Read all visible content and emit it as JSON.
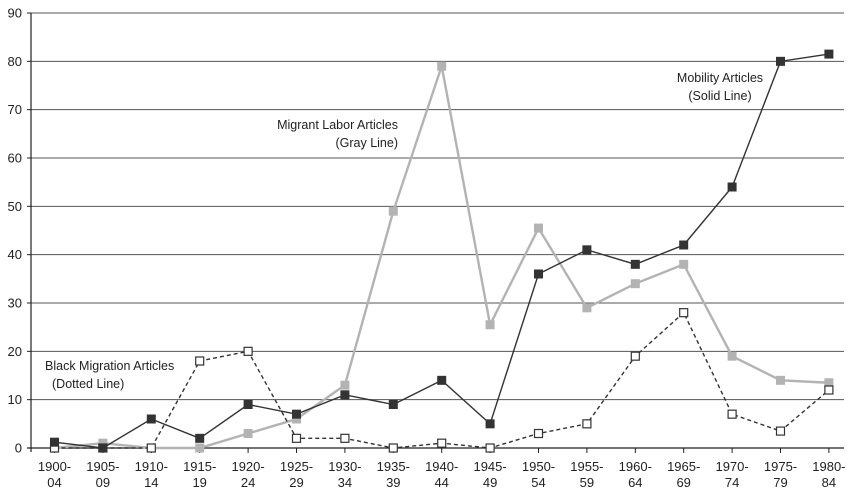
{
  "chart_data": {
    "type": "line",
    "categories": [
      [
        "1900-",
        "04"
      ],
      [
        "1905-",
        "09"
      ],
      [
        "1910-",
        "14"
      ],
      [
        "1915-",
        "19"
      ],
      [
        "1920-",
        "24"
      ],
      [
        "1925-",
        "29"
      ],
      [
        "1930-",
        "34"
      ],
      [
        "1935-",
        "39"
      ],
      [
        "1940-",
        "44"
      ],
      [
        "1945-",
        "49"
      ],
      [
        "1950-",
        "54"
      ],
      [
        "1955-",
        "59"
      ],
      [
        "1960-",
        "64"
      ],
      [
        "1965-",
        "69"
      ],
      [
        "1970-",
        "74"
      ],
      [
        "1975-",
        "79"
      ],
      [
        "1980-",
        "84"
      ]
    ],
    "ylim": [
      0,
      90
    ],
    "yticks": [
      0,
      10,
      20,
      30,
      40,
      50,
      60,
      70,
      80,
      90
    ],
    "grid": true,
    "series": [
      {
        "key": "migrant",
        "values": [
          0,
          1,
          0,
          0,
          3,
          6,
          13,
          49,
          79,
          25.5,
          45.5,
          29,
          34,
          38,
          19,
          14,
          13.5
        ],
        "color": "#b3b3b3",
        "line_style": "solid",
        "marker": "filled-square"
      },
      {
        "key": "black",
        "values": [
          0,
          0,
          0,
          18,
          20,
          2,
          2,
          0,
          1,
          0,
          3,
          5,
          19,
          28,
          7,
          3.5,
          12
        ],
        "color": "#333333",
        "line_style": "dashed",
        "marker": "open-square"
      },
      {
        "key": "mobility",
        "values": [
          1.2,
          0,
          6,
          2,
          9,
          7,
          11,
          9,
          14,
          5,
          36,
          41,
          38,
          42,
          54,
          80,
          81.5
        ],
        "color": "#333333",
        "line_style": "solid",
        "marker": "filled-square"
      }
    ],
    "annotations": {
      "mobility": [
        "Mobility Articles",
        "(Solid Line)"
      ],
      "migrant": [
        "Migrant Labor Articles",
        "(Gray Line)"
      ],
      "black": [
        "Black Migration Articles",
        "(Dotted Line)"
      ]
    }
  }
}
